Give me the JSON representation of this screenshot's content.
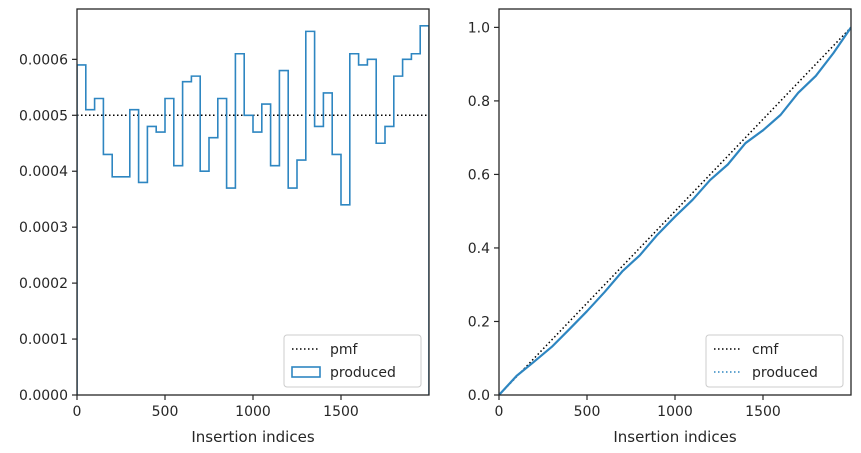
{
  "chart_data": [
    {
      "type": "step",
      "title": "",
      "xlabel": "Insertion indices",
      "ylabel": "",
      "xlim": [
        0,
        2000
      ],
      "ylim": [
        0,
        0.00069
      ],
      "xticks": [
        0,
        500,
        1000,
        1500
      ],
      "xtick_labels": [
        "0",
        "500",
        "1000",
        "1500"
      ],
      "yticks": [
        0,
        0.0001,
        0.0002,
        0.0003,
        0.0004,
        0.0005,
        0.0006
      ],
      "ytick_labels": [
        "0.0000",
        "0.0001",
        "0.0002",
        "0.0003",
        "0.0004",
        "0.0005",
        "0.0006"
      ],
      "legend": {
        "position": "lower right",
        "entries": [
          "pmf",
          "produced"
        ]
      },
      "series": [
        {
          "name": "pmf",
          "style": "dotted",
          "color": "#000000",
          "x": [
            0,
            2000
          ],
          "y": [
            0.0005,
            0.0005
          ]
        },
        {
          "name": "produced",
          "style": "step-outline",
          "color": "#2e86c1",
          "bin_width": 50,
          "bin_starts": [
            0,
            50,
            100,
            150,
            200,
            250,
            300,
            350,
            400,
            450,
            500,
            550,
            600,
            650,
            700,
            750,
            800,
            850,
            900,
            950,
            1000,
            1050,
            1100,
            1150,
            1200,
            1250,
            1300,
            1350,
            1400,
            1450,
            1500,
            1550,
            1600,
            1650,
            1700,
            1750,
            1800,
            1850,
            1900,
            1950
          ],
          "values": [
            0.00059,
            0.00051,
            0.00053,
            0.00043,
            0.00039,
            0.00039,
            0.00051,
            0.00038,
            0.00048,
            0.00047,
            0.00053,
            0.00041,
            0.00056,
            0.00057,
            0.0004,
            0.00046,
            0.00053,
            0.00037,
            0.00061,
            0.0005,
            0.00047,
            0.00052,
            0.00041,
            0.00058,
            0.00037,
            0.00042,
            0.00065,
            0.00048,
            0.00054,
            0.00043,
            0.00034,
            0.00061,
            0.00059,
            0.0006,
            0.00045,
            0.00048,
            0.00057,
            0.0006,
            0.00061,
            0.00066
          ]
        }
      ]
    },
    {
      "type": "line",
      "title": "",
      "xlabel": "Insertion indices",
      "ylabel": "",
      "xlim": [
        0,
        2000
      ],
      "ylim": [
        0,
        1.05
      ],
      "xticks": [
        0,
        500,
        1000,
        1500
      ],
      "xtick_labels": [
        "0",
        "500",
        "1000",
        "1500"
      ],
      "yticks": [
        0,
        0.2,
        0.4,
        0.6,
        0.8,
        1.0
      ],
      "ytick_labels": [
        "0.0",
        "0.2",
        "0.4",
        "0.6",
        "0.8",
        "1.0"
      ],
      "legend": {
        "position": "lower right",
        "entries": [
          "cmf",
          "produced"
        ]
      },
      "series": [
        {
          "name": "cmf",
          "style": "dotted",
          "color": "#000000",
          "x": [
            0,
            2000
          ],
          "y": [
            0,
            1.0
          ]
        },
        {
          "name": "produced",
          "style": "solid",
          "color": "#2e86c1",
          "x": [
            0,
            100,
            200,
            300,
            400,
            500,
            600,
            700,
            800,
            900,
            1000,
            1100,
            1200,
            1300,
            1400,
            1500,
            1600,
            1700,
            1800,
            1900,
            2000
          ],
          "y": [
            0,
            0.052,
            0.091,
            0.131,
            0.179,
            0.228,
            0.28,
            0.336,
            0.38,
            0.436,
            0.485,
            0.531,
            0.585,
            0.627,
            0.685,
            0.72,
            0.762,
            0.822,
            0.868,
            0.93,
            1.0
          ]
        }
      ]
    }
  ]
}
